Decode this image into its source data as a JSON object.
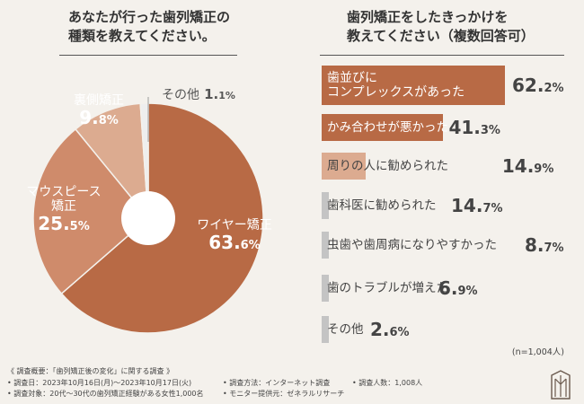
{
  "left_title": [
    "あなたが行った歯列矯正の",
    "種類を教えてください。"
  ],
  "right_title": [
    "歯列矯正をしたきっかけを",
    "教えてください（複数回答可）"
  ],
  "colors": {
    "dark": "#b86a45",
    "medium": "#cf8b6b",
    "light": "#dcab90",
    "gray": "#c4c4c4"
  },
  "chart_data": [
    {
      "type": "pie",
      "title": "あなたが行った歯列矯正の種類を教えてください。",
      "slices": [
        {
          "label": "ワイヤー矯正",
          "value": 63.6,
          "display_int": "63.",
          "display_dec": "6%"
        },
        {
          "label": "マウスピース矯正",
          "label_lines": [
            "マウスピース",
            "矯正"
          ],
          "value": 25.5,
          "display_int": "25.",
          "display_dec": "5%"
        },
        {
          "label": "裏側矯正",
          "value": 9.8,
          "display_int": "9.",
          "display_dec": "8%"
        },
        {
          "label": "その他",
          "value": 1.1,
          "display_int": "1.",
          "display_dec": "1%"
        }
      ]
    },
    {
      "type": "bar",
      "orientation": "horizontal",
      "title": "歯列矯正をしたきっかけを教えてください（複数回答可）",
      "categories": [
        "歯並びにコンプレックスがあった",
        "かみ合わせが悪かった",
        "周りの人に勧められた",
        "歯科医に勧められた",
        "虫歯や歯周病になりやすかった",
        "歯のトラブルが増えた",
        "その他"
      ],
      "category_lines": [
        [
          "歯並びに",
          "コンプレックスがあった"
        ],
        [
          "かみ合わせが悪かった"
        ],
        [
          "周りの人に勧められた"
        ],
        [
          "歯科医に勧められた"
        ],
        [
          "虫歯や歯周病になりやすかった"
        ],
        [
          "歯のトラブルが増えた"
        ],
        [
          "その他"
        ]
      ],
      "values": [
        62.2,
        41.3,
        14.9,
        14.7,
        8.7,
        6.9,
        2.6
      ],
      "value_int": [
        "62.",
        "41.",
        "14.",
        "14.",
        "8.",
        "6.",
        "2."
      ],
      "value_dec": [
        "2%",
        "3%",
        "9%",
        "7%",
        "7%",
        "9%",
        "6%"
      ],
      "xlim": [
        0,
        100
      ],
      "note": "(n=1,004人)"
    }
  ],
  "footer": {
    "heading": "《 調査概要：「歯列矯正後の変化」に関する調査 》",
    "date": "• 調査日：2023年10月16日(月)〜2023年10月17日(火)",
    "method": "• 調査方法：インターネット調査",
    "count": "• 調査人数：1,008人",
    "target": "• 調査対象：20代〜30代の歯列矯正経験がある女性1,000名",
    "provider": "• モニター提供元：ゼネラルリサーチ"
  }
}
